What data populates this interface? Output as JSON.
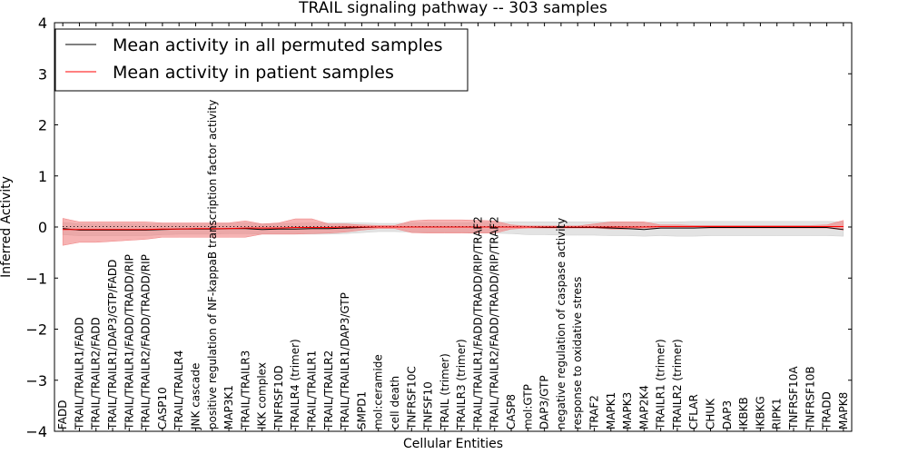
{
  "chart_data": {
    "type": "line",
    "title": "TRAIL signaling pathway -- 303 samples",
    "xlabel": "Cellular Entities",
    "ylabel": "Inferred Activity",
    "ylim": [
      -4,
      4
    ],
    "yticks": [
      4,
      3,
      2,
      1,
      0,
      -1,
      -2,
      -3,
      -4
    ],
    "ytick_labels": [
      "4",
      "3",
      "2",
      "1",
      "0",
      "−1",
      "−2",
      "−3",
      "−4"
    ],
    "grid": false,
    "legend_position": "upper-left",
    "categories": [
      "FADD",
      "TRAIL/TRAILR1/FADD",
      "TRAIL/TRAILR2/FADD",
      "TRAIL/TRAILR1/DAP3/GTP/FADD",
      "TRAIL/TRAILR1/FADD/TRADD/RIP",
      "TRAIL/TRAILR2/FADD/TRADD/RIP",
      "CASP10",
      "TRAIL/TRAILR4",
      "JNK cascade",
      "positive regulation of NF-kappaB transcription factor activity",
      "MAP3K1",
      "TRAIL/TRAILR3",
      "IKK complex",
      "TNFRSF10D",
      "TRAILR4 (trimer)",
      "TRAIL/TRAILR1",
      "TRAIL/TRAILR2",
      "TRAIL/TRAILR1/DAP3/GTP",
      "SMPD1",
      "mol:ceramide",
      "cell death",
      "TNFRSF10C",
      "TNFSF10",
      "TRAIL (trimer)",
      "TRAILR3 (trimer)",
      "TRAIL/TRAILR1/FADD/TRADD/RIP/TRAF2",
      "TRAIL/TRAILR2/FADD/TRADD/RIP/TRAF2",
      "CASP8",
      "mol:GTP",
      "DAP3/GTP",
      "negative regulation of caspase activity",
      "response to oxidative stress",
      "TRAF2",
      "MAPK1",
      "MAPK3",
      "MAP2K4",
      "TRAILR1 (trimer)",
      "TRAILR2 (trimer)",
      "CFLAR",
      "CHUK",
      "DAP3",
      "IKBKB",
      "IKBKG",
      "RIPK1",
      "TNFRSF10A",
      "TNFRSF10B",
      "TRADD",
      "MAPK8"
    ],
    "series": [
      {
        "name": "Mean activity in all permuted samples",
        "color": "#000000",
        "band_color": "#cccccc",
        "values": [
          -0.03,
          -0.06,
          -0.06,
          -0.06,
          -0.06,
          -0.06,
          -0.05,
          -0.04,
          -0.04,
          -0.04,
          -0.03,
          -0.03,
          -0.05,
          -0.04,
          -0.04,
          -0.03,
          -0.03,
          -0.02,
          -0.01,
          0,
          0,
          0,
          0,
          0,
          0,
          0,
          0,
          0,
          0,
          -0.01,
          -0.01,
          -0.01,
          -0.01,
          -0.02,
          -0.03,
          -0.05,
          -0.02,
          -0.02,
          -0.02,
          -0.01,
          -0.01,
          -0.01,
          -0.01,
          -0.01,
          -0.01,
          -0.01,
          -0.01,
          -0.05
        ],
        "lower": [
          -0.15,
          -0.17,
          -0.17,
          -0.17,
          -0.17,
          -0.17,
          -0.15,
          -0.14,
          -0.14,
          -0.14,
          -0.13,
          -0.13,
          -0.14,
          -0.14,
          -0.14,
          -0.14,
          -0.14,
          -0.13,
          -0.11,
          -0.09,
          -0.09,
          -0.1,
          -0.1,
          -0.1,
          -0.1,
          -0.12,
          -0.12,
          -0.13,
          -0.15,
          -0.15,
          -0.16,
          -0.16,
          -0.16,
          -0.17,
          -0.17,
          -0.18,
          -0.17,
          -0.18,
          -0.18,
          -0.17,
          -0.17,
          -0.17,
          -0.17,
          -0.17,
          -0.17,
          -0.17,
          -0.17,
          -0.18
        ],
        "upper": [
          0.09,
          0.06,
          0.06,
          0.06,
          0.06,
          0.06,
          0.06,
          0.06,
          0.06,
          0.06,
          0.07,
          0.08,
          0.06,
          0.07,
          0.07,
          0.08,
          0.08,
          0.08,
          0.08,
          0.07,
          0.07,
          0.08,
          0.08,
          0.08,
          0.08,
          0.09,
          0.09,
          0.1,
          0.1,
          0.1,
          0.1,
          0.1,
          0.1,
          0.1,
          0.1,
          0.09,
          0.1,
          0.1,
          0.11,
          0.11,
          0.11,
          0.11,
          0.11,
          0.11,
          0.11,
          0.11,
          0.11,
          0.1
        ]
      },
      {
        "name": "Mean activity in patient samples",
        "color": "#ff0000",
        "band_color": "#f08080",
        "values": [
          -0.05,
          -0.05,
          -0.05,
          -0.05,
          -0.05,
          -0.05,
          -0.04,
          -0.04,
          -0.03,
          -0.03,
          -0.03,
          -0.02,
          -0.02,
          -0.02,
          -0.01,
          -0.01,
          -0.01,
          0,
          0,
          0,
          0,
          0,
          0,
          0,
          0,
          0,
          0,
          0,
          0,
          0,
          0,
          0,
          0,
          0,
          0,
          0,
          0.01,
          0.01,
          0.01,
          0.01,
          0.01,
          0.01,
          0.01,
          0.01,
          0.01,
          0.01,
          0.01,
          0.01
        ],
        "lower": [
          -0.36,
          -0.3,
          -0.3,
          -0.28,
          -0.26,
          -0.24,
          -0.2,
          -0.2,
          -0.2,
          -0.2,
          -0.2,
          -0.2,
          -0.14,
          -0.14,
          -0.14,
          -0.13,
          -0.12,
          -0.1,
          -0.06,
          -0.03,
          -0.03,
          -0.11,
          -0.12,
          -0.12,
          -0.12,
          -0.12,
          -0.12,
          -0.04,
          -0.02,
          -0.02,
          -0.02,
          -0.02,
          -0.02,
          -0.04,
          -0.04,
          -0.02,
          -0.02,
          -0.02,
          -0.02,
          -0.02,
          -0.02,
          -0.02,
          -0.02,
          -0.02,
          -0.02,
          -0.02,
          -0.02,
          -0.06
        ],
        "upper": [
          0.17,
          0.1,
          0.1,
          0.1,
          0.1,
          0.1,
          0.08,
          0.08,
          0.08,
          0.08,
          0.08,
          0.12,
          0.06,
          0.08,
          0.16,
          0.16,
          0.06,
          0.06,
          0.04,
          0.03,
          0.03,
          0.12,
          0.14,
          0.14,
          0.14,
          0.13,
          0.12,
          0.04,
          0.02,
          0.02,
          0.02,
          0.02,
          0.06,
          0.1,
          0.1,
          0.1,
          0.04,
          0.04,
          0.03,
          0.03,
          0.03,
          0.03,
          0.03,
          0.03,
          0.03,
          0.03,
          0.04,
          0.13
        ]
      }
    ],
    "reference_line": {
      "style": "dotted",
      "color": "#000000",
      "values": [
        0.01,
        0.01,
        0.01,
        0.01,
        0.01,
        0.01,
        0.01,
        0.01,
        0.01,
        0.01,
        0.01,
        0.01,
        0.01,
        0.01,
        0.01,
        0.01,
        0.01,
        0.01,
        0.01,
        0.01,
        0.01,
        0.01,
        0.01,
        0.01,
        0.01,
        0.01,
        0.01,
        0.01,
        0.01,
        0.01,
        0.01,
        0.01,
        0.01,
        0.01,
        0.01,
        0.01,
        0.01,
        0.01,
        0.01,
        0.01,
        0.01,
        0.01,
        0.01,
        0.01,
        0.01,
        0.01,
        0.01,
        0.01
      ]
    }
  }
}
